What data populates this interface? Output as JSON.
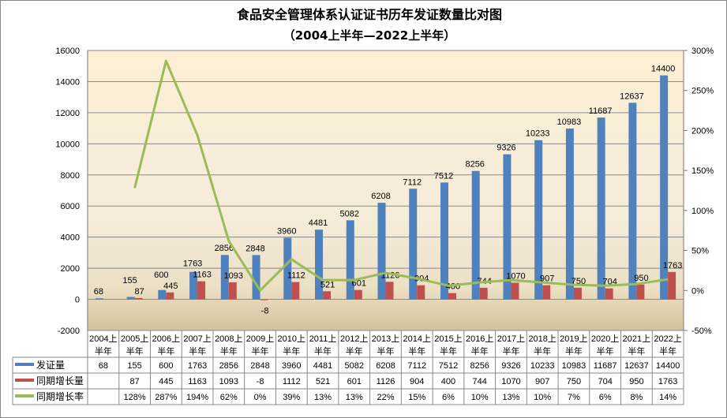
{
  "chart_data": {
    "type": "bar",
    "title": "食品安全管理体系认证证书历年发证数量比对图",
    "subtitle": "（2004上半年—2022上半年）",
    "categories": [
      "2004上半年",
      "2005上半年",
      "2006上半年",
      "2007上半年",
      "2008上半年",
      "2009上半年",
      "2010上半年",
      "2011上半年",
      "2012上半年",
      "2013上半年",
      "2014上半年",
      "2015上半年",
      "2016上半年",
      "2017上半年",
      "2018上半年",
      "2019上半年",
      "2020上半年",
      "2021上半年",
      "2022上半年"
    ],
    "series": [
      {
        "name": "发证量",
        "type": "bar",
        "axis": "left",
        "color": "#4F81BD",
        "values": [
          68,
          155,
          600,
          1763,
          2856,
          2848,
          3960,
          4481,
          5082,
          6208,
          7112,
          7512,
          8256,
          9326,
          10233,
          10983,
          11687,
          12637,
          14400
        ]
      },
      {
        "name": "同期增长量",
        "type": "bar",
        "axis": "left",
        "color": "#C0504D",
        "values": [
          null,
          87,
          445,
          1163,
          1093,
          -8,
          1112,
          521,
          601,
          1126,
          904,
          400,
          744,
          1070,
          907,
          750,
          704,
          950,
          1763
        ]
      },
      {
        "name": "同期增长率",
        "type": "line",
        "axis": "right",
        "color": "#9BBB59",
        "values": [
          null,
          128,
          287,
          194,
          62,
          0,
          39,
          13,
          13,
          22,
          15,
          6,
          10,
          13,
          10,
          7,
          6,
          8,
          14
        ],
        "labels": [
          "",
          "128%",
          "287%",
          "194%",
          "62%",
          "0%",
          "39%",
          "13%",
          "13%",
          "22%",
          "15%",
          "6%",
          "10%",
          "13%",
          "10%",
          "7%",
          "6%",
          "8%",
          "14%"
        ]
      }
    ],
    "y_left": {
      "range": [
        -2000,
        16000
      ],
      "ticks": [
        -2000,
        0,
        2000,
        4000,
        6000,
        8000,
        10000,
        12000,
        14000,
        16000
      ]
    },
    "y_right": {
      "range": [
        -50,
        300
      ],
      "ticks": [
        "-50%",
        "0%",
        "50%",
        "100%",
        "150%",
        "200%",
        "250%",
        "300%"
      ]
    },
    "grid": true,
    "legend": "data-table-below"
  }
}
